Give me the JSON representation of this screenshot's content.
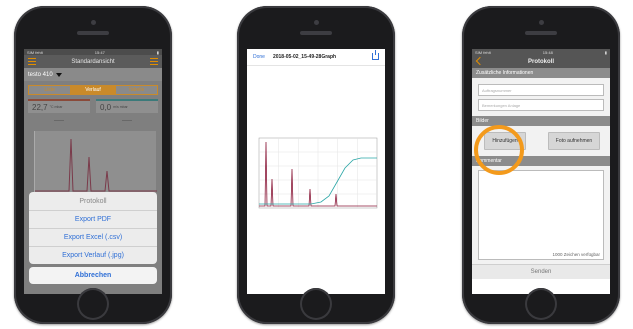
{
  "phone1": {
    "status": {
      "carrier": "SIM fehlt",
      "time": "15:47"
    },
    "nav_title": "Standardansicht",
    "device": "testo 410",
    "tabs": [
      "Liste",
      "Verlauf",
      "Tabelle"
    ],
    "readings": [
      {
        "value": "22,7",
        "unit": "°C mbar"
      },
      {
        "value": "0,0",
        "unit": "m/s mbar"
      }
    ],
    "dashes": [
      "-----",
      "-----"
    ],
    "action_sheet": {
      "title": "Protokoll",
      "options": [
        "Export PDF",
        "Export Excel (.csv)",
        "Export Verlauf (.jpg)"
      ],
      "cancel": "Abbrechen"
    }
  },
  "phone2": {
    "done_label": "Done",
    "file_name": "2018-05-02_15-49-28Graph",
    "chart_data": {
      "type": "line",
      "series": [
        {
          "color": "#8b1a3a"
        },
        {
          "color": "#2aa6a6"
        }
      ]
    }
  },
  "phone3": {
    "status": {
      "carrier": "SIM fehlt",
      "time": "15:48"
    },
    "nav_title": "Protokoll",
    "section_info": "Zusätzliche Informationen",
    "field_placeholders": [
      "Auftragsnummer",
      "Bemerkungen Anlage"
    ],
    "section_images": "Bilder",
    "add_button": "Hinzufügen",
    "photo_button": "Foto aufnehmen",
    "section_comment": "Kommentar",
    "chars_available": "1000 Zeichen verfügbar",
    "send_label": "Senden",
    "highlight_color": "#f39a1c"
  }
}
